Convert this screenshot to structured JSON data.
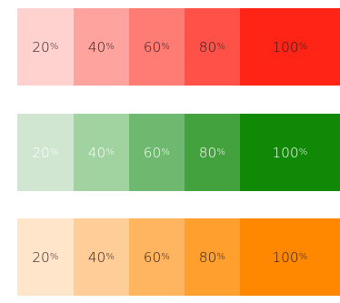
{
  "palettes": [
    {
      "name": "red",
      "swatches": [
        {
          "value": "20",
          "unit": "%",
          "color": "#FFD2D0",
          "text_color": "#2a1a1a"
        },
        {
          "value": "40",
          "unit": "%",
          "color": "#FFA39E",
          "text_color": "#2a1a1a"
        },
        {
          "value": "60",
          "unit": "%",
          "color": "#FF7C74",
          "text_color": "#2a1a1a"
        },
        {
          "value": "80",
          "unit": "%",
          "color": "#FF5148",
          "text_color": "#2a1a1a"
        },
        {
          "value": "100",
          "unit": "%",
          "color": "#FF2416",
          "text_color": "#2a1a1a"
        }
      ]
    },
    {
      "name": "green",
      "swatches": [
        {
          "value": "20",
          "unit": "%",
          "color": "#D0E6D1",
          "text_color": "#ffffff"
        },
        {
          "value": "40",
          "unit": "%",
          "color": "#A1D3A0",
          "text_color": "#ffffff"
        },
        {
          "value": "60",
          "unit": "%",
          "color": "#6EB96F",
          "text_color": "#ffffff"
        },
        {
          "value": "80",
          "unit": "%",
          "color": "#43A13E",
          "text_color": "#ffffff"
        },
        {
          "value": "100",
          "unit": "%",
          "color": "#108A06",
          "text_color": "#ffffff"
        }
      ]
    },
    {
      "name": "orange",
      "swatches": [
        {
          "value": "20",
          "unit": "%",
          "color": "#FFE6CB",
          "text_color": "#2a1a1a"
        },
        {
          "value": "40",
          "unit": "%",
          "color": "#FFCD97",
          "text_color": "#2a1a1a"
        },
        {
          "value": "60",
          "unit": "%",
          "color": "#FFB460",
          "text_color": "#2a1a1a"
        },
        {
          "value": "80",
          "unit": "%",
          "color": "#FF9F2D",
          "text_color": "#2a1a1a"
        },
        {
          "value": "100",
          "unit": "%",
          "color": "#FF8800",
          "text_color": "#2a1a1a"
        }
      ]
    }
  ]
}
